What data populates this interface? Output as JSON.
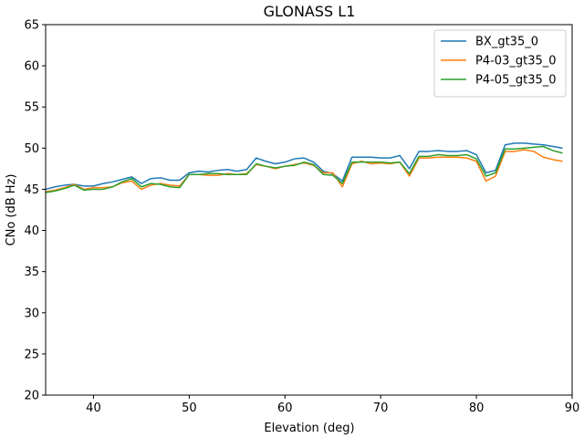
{
  "chart_data": {
    "type": "line",
    "title": "GLONASS L1",
    "xlabel": "Elevation (deg)",
    "ylabel": "CNo (dB Hz)",
    "xlim": [
      35,
      90
    ],
    "ylim": [
      20,
      65
    ],
    "xticks": [
      40,
      50,
      60,
      70,
      80,
      90
    ],
    "yticks": [
      20,
      25,
      30,
      35,
      40,
      45,
      50,
      55,
      60,
      65
    ],
    "grid": false,
    "legend_position": "top-right",
    "x": [
      35,
      36,
      37,
      38,
      39,
      40,
      41,
      42,
      43,
      44,
      45,
      46,
      47,
      48,
      49,
      50,
      51,
      52,
      53,
      54,
      55,
      56,
      57,
      58,
      59,
      60,
      61,
      62,
      63,
      64,
      65,
      66,
      67,
      68,
      69,
      70,
      71,
      72,
      73,
      74,
      75,
      76,
      77,
      78,
      79,
      80,
      81,
      82,
      83,
      84,
      85,
      86,
      87,
      88,
      89
    ],
    "series": [
      {
        "name": "BX_gt35_0",
        "color": "#1f77b4",
        "values": [
          45.0,
          45.3,
          45.5,
          45.6,
          45.4,
          45.4,
          45.7,
          45.9,
          46.2,
          46.5,
          45.7,
          46.3,
          46.4,
          46.1,
          46.1,
          47.0,
          47.2,
          47.1,
          47.3,
          47.4,
          47.2,
          47.4,
          48.8,
          48.4,
          48.1,
          48.3,
          48.7,
          48.8,
          48.3,
          47.2,
          46.9,
          46.0,
          48.9,
          48.9,
          48.9,
          48.8,
          48.8,
          49.1,
          47.5,
          49.6,
          49.6,
          49.7,
          49.6,
          49.6,
          49.7,
          49.2,
          47.0,
          47.3,
          50.4,
          50.6,
          50.6,
          50.5,
          50.4,
          50.2,
          50.0
        ]
      },
      {
        "name": "P4-03_gt35_0",
        "color": "#ff7f0e",
        "values": [
          44.7,
          44.9,
          45.2,
          45.6,
          45.0,
          45.2,
          45.2,
          45.3,
          45.8,
          46.0,
          45.0,
          45.5,
          45.7,
          45.5,
          45.4,
          46.8,
          46.8,
          46.7,
          46.7,
          46.9,
          46.8,
          46.9,
          48.0,
          47.8,
          47.5,
          47.8,
          48.0,
          48.2,
          47.9,
          47.0,
          47.0,
          45.3,
          48.1,
          48.4,
          48.1,
          48.2,
          48.1,
          48.3,
          46.6,
          48.8,
          48.8,
          48.9,
          48.9,
          48.9,
          48.8,
          48.4,
          46.0,
          46.6,
          49.6,
          49.6,
          49.8,
          49.6,
          48.9,
          48.6,
          48.4
        ]
      },
      {
        "name": "P4-05_gt35_0",
        "color": "#2ca02c",
        "values": [
          44.6,
          44.8,
          45.1,
          45.5,
          44.9,
          45.0,
          45.0,
          45.3,
          45.9,
          46.3,
          45.3,
          45.7,
          45.6,
          45.3,
          45.2,
          46.8,
          46.8,
          46.9,
          46.9,
          46.8,
          46.8,
          46.8,
          48.1,
          47.8,
          47.6,
          47.8,
          47.9,
          48.3,
          48.0,
          46.8,
          46.7,
          45.7,
          48.3,
          48.3,
          48.3,
          48.3,
          48.2,
          48.3,
          46.9,
          49.0,
          49.0,
          49.2,
          49.1,
          49.1,
          49.2,
          48.7,
          46.6,
          47.0,
          49.9,
          49.9,
          50.0,
          50.1,
          50.2,
          49.7,
          49.4
        ]
      }
    ]
  }
}
